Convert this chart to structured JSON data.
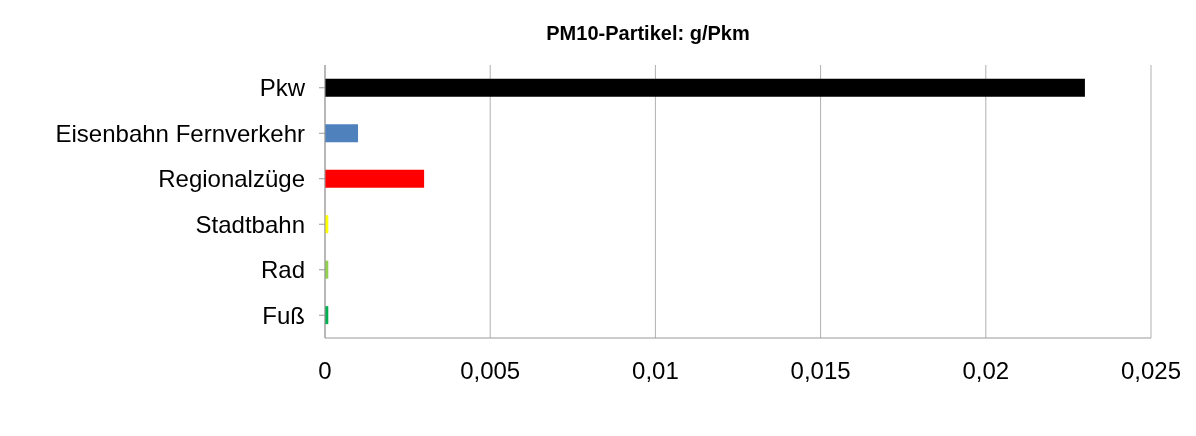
{
  "chart_data": {
    "type": "bar",
    "orientation": "horizontal",
    "title": "PM10-Partikel:  g/Pkm",
    "categories": [
      "Pkw",
      "Eisenbahn Fernverkehr",
      "Regionalzüge",
      "Stadtbahn",
      "Rad",
      "Fuß"
    ],
    "values": [
      0.023,
      0.001,
      0.003,
      0.0001,
      0.0001,
      0.0001
    ],
    "colors": [
      "#000000",
      "#4f81bd",
      "#ff0000",
      "#ffff00",
      "#92d050",
      "#00b050"
    ],
    "xlim": [
      0,
      0.025
    ],
    "xticks": [
      0,
      {
        "value": 0.005,
        "label": "0,005"
      },
      {
        "value": 0.01,
        "label": "0,01"
      },
      {
        "value": 0.015,
        "label": "0,015"
      },
      {
        "value": 0.02,
        "label": "0,02"
      },
      {
        "value": 0.025,
        "label": "0,025"
      }
    ],
    "grid": "x"
  }
}
